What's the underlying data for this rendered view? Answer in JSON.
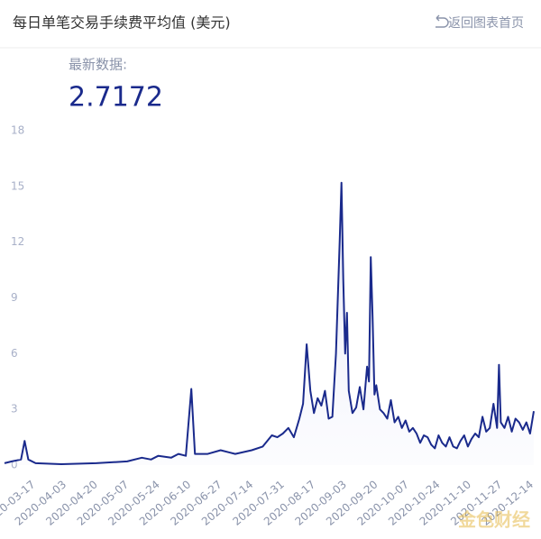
{
  "header": {
    "title": "每日单笔交易手续费平均值 (美元)",
    "back": "返回图表首页"
  },
  "latest": {
    "label": "最新数据:",
    "value": "2.7172"
  },
  "watermark": "金色财经",
  "chart_data": {
    "type": "line",
    "color": "#1a2a8c",
    "xlim": [
      "2020-03-01",
      "2020-12-16"
    ],
    "xticks": [
      "2020-03-17",
      "2020-04-03",
      "2020-04-20",
      "2020-05-07",
      "2020-05-24",
      "2020-06-10",
      "2020-06-27",
      "2020-07-14",
      "2020-07-31",
      "2020-08-17",
      "2020-09-03",
      "2020-09-20",
      "2020-10-07",
      "2020-10-24",
      "2020-11-10",
      "2020-11-27",
      "2020-12-14"
    ],
    "ylim": [
      0,
      18
    ],
    "yticks": [
      0,
      3,
      6,
      9,
      12,
      15,
      18
    ],
    "x": [
      "2020-03-01",
      "2020-03-05",
      "2020-03-10",
      "2020-03-12",
      "2020-03-14",
      "2020-03-18",
      "2020-04-01",
      "2020-04-20",
      "2020-05-07",
      "2020-05-15",
      "2020-05-20",
      "2020-05-24",
      "2020-05-31",
      "2020-06-04",
      "2020-06-08",
      "2020-06-11",
      "2020-06-13",
      "2020-06-20",
      "2020-06-27",
      "2020-07-05",
      "2020-07-14",
      "2020-07-20",
      "2020-07-25",
      "2020-07-28",
      "2020-07-31",
      "2020-08-03",
      "2020-08-06",
      "2020-08-09",
      "2020-08-11",
      "2020-08-13",
      "2020-08-15",
      "2020-08-17",
      "2020-08-19",
      "2020-08-21",
      "2020-08-23",
      "2020-08-25",
      "2020-08-27",
      "2020-08-29",
      "2020-08-31",
      "2020-09-01",
      "2020-09-02",
      "2020-09-03",
      "2020-09-04",
      "2020-09-05",
      "2020-09-07",
      "2020-09-09",
      "2020-09-11",
      "2020-09-13",
      "2020-09-15",
      "2020-09-16",
      "2020-09-17",
      "2020-09-18",
      "2020-09-19",
      "2020-09-20",
      "2020-09-22",
      "2020-09-24",
      "2020-09-26",
      "2020-09-28",
      "2020-09-30",
      "2020-10-02",
      "2020-10-04",
      "2020-10-06",
      "2020-10-08",
      "2020-10-10",
      "2020-10-12",
      "2020-10-14",
      "2020-10-16",
      "2020-10-18",
      "2020-10-20",
      "2020-10-22",
      "2020-10-24",
      "2020-10-26",
      "2020-10-28",
      "2020-10-30",
      "2020-11-01",
      "2020-11-03",
      "2020-11-05",
      "2020-11-07",
      "2020-11-09",
      "2020-11-11",
      "2020-11-13",
      "2020-11-15",
      "2020-11-17",
      "2020-11-19",
      "2020-11-21",
      "2020-11-23",
      "2020-11-25",
      "2020-11-26",
      "2020-11-27",
      "2020-11-29",
      "2020-12-01",
      "2020-12-03",
      "2020-12-05",
      "2020-12-07",
      "2020-12-09",
      "2020-12-11",
      "2020-12-13",
      "2020-12-15"
    ],
    "values": [
      0.1,
      0.2,
      0.3,
      1.3,
      0.3,
      0.1,
      0.05,
      0.1,
      0.2,
      0.4,
      0.3,
      0.5,
      0.4,
      0.6,
      0.5,
      4.1,
      0.6,
      0.6,
      0.8,
      0.6,
      0.8,
      1.0,
      1.6,
      1.5,
      1.7,
      2.0,
      1.5,
      2.5,
      3.3,
      6.5,
      4.0,
      2.8,
      3.6,
      3.2,
      4.0,
      2.5,
      2.6,
      6.0,
      12.0,
      15.2,
      10.0,
      6.0,
      8.2,
      4.0,
      2.8,
      3.1,
      4.2,
      3.0,
      5.3,
      4.5,
      11.2,
      8.0,
      3.8,
      4.3,
      3.0,
      2.8,
      2.5,
      3.5,
      2.3,
      2.6,
      2.0,
      2.4,
      1.8,
      2.0,
      1.7,
      1.2,
      1.6,
      1.5,
      1.1,
      0.9,
      1.6,
      1.2,
      1.0,
      1.5,
      1.0,
      0.9,
      1.3,
      1.6,
      1.0,
      1.4,
      1.7,
      1.5,
      2.6,
      1.8,
      2.0,
      3.3,
      2.0,
      5.4,
      2.3,
      2.0,
      2.6,
      1.8,
      2.5,
      2.3,
      1.9,
      2.3,
      1.7,
      2.9
    ]
  }
}
